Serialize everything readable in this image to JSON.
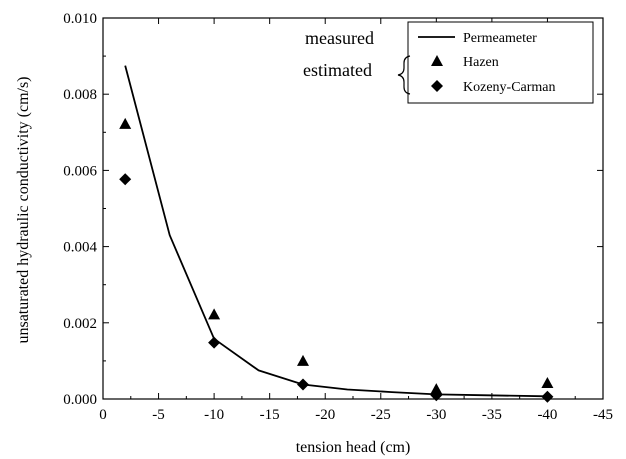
{
  "chart_data": {
    "type": "scatter",
    "xlabel": "tension head (cm)",
    "ylabel": "unsaturated hydraulic conductivity (cm/s)",
    "xlim": [
      0,
      -45
    ],
    "ylim": [
      0,
      0.01
    ],
    "xticks": [
      0,
      -5,
      -10,
      -15,
      -20,
      -25,
      -30,
      -35,
      -40,
      -45
    ],
    "xtick_labels": [
      "0",
      "-5",
      "-10",
      "-15",
      "-20",
      "-25",
      "-30",
      "-35",
      "-40",
      "-45"
    ],
    "yticks": [
      0,
      0.002,
      0.004,
      0.006,
      0.008,
      0.01
    ],
    "ytick_labels": [
      "0.000",
      "0.002",
      "0.004",
      "0.006",
      "0.008",
      "0.010"
    ],
    "grid": false,
    "legend_position": "top-right",
    "series": [
      {
        "name": "Permeameter",
        "kind": "line",
        "x": [
          -2,
          -6,
          -10,
          -14,
          -18,
          -22,
          -26,
          -30,
          -34,
          -40
        ],
        "y": [
          0.00875,
          0.0043,
          0.00158,
          0.00075,
          0.00038,
          0.00025,
          0.00018,
          0.00012,
          0.0001,
          7e-05
        ]
      },
      {
        "name": "Hazen",
        "kind": "marker",
        "marker": "triangle",
        "x": [
          -2,
          -10,
          -18,
          -30,
          -40
        ],
        "y": [
          0.00722,
          0.00222,
          0.001,
          0.00026,
          0.00042
        ]
      },
      {
        "name": "Kozeny-Carman",
        "kind": "marker",
        "marker": "diamond",
        "x": [
          -2,
          -10,
          -18,
          -30,
          -40
        ],
        "y": [
          0.00577,
          0.00148,
          0.00038,
          0.0001,
          6e-05
        ]
      }
    ],
    "annotations": [
      {
        "text": "measured",
        "refers_to": "Permeameter"
      },
      {
        "text": "estimated",
        "refers_to": "Hazen, Kozeny-Carman"
      }
    ]
  }
}
